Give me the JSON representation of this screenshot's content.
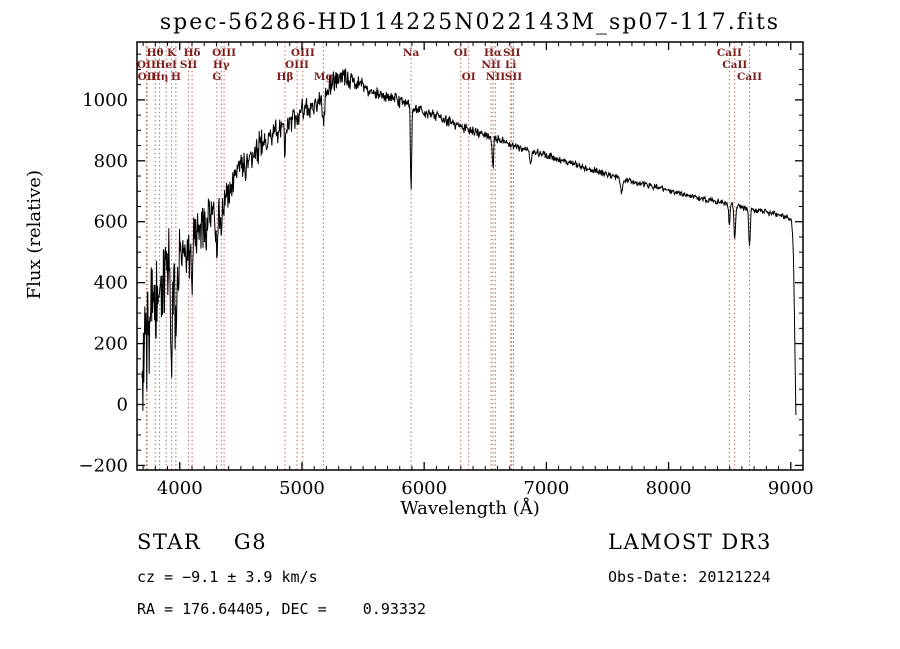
{
  "chart_data": {
    "type": "line",
    "title": "spec-56286-HD114225N022143M_sp07-117.fits",
    "xlabel": "Wavelength (Å)",
    "ylabel": "Flux (relative)",
    "xlim": [
      3650,
      9100
    ],
    "ylim": [
      -215,
      1190
    ],
    "xticks": [
      4000,
      5000,
      6000,
      7000,
      8000,
      9000
    ],
    "yticks": [
      -200,
      0,
      200,
      400,
      600,
      800,
      1000
    ],
    "x_minor_step": 100,
    "y_minor_step": 50,
    "grid": false,
    "legend": "none",
    "line_color": "#000000",
    "marker_style": {
      "color": "#b2503c",
      "label_color": "#7d1d1d",
      "dash": "1.5 2.6"
    },
    "sample_range": [
      3690,
      9042
    ],
    "sample_step": 4,
    "noise_seed": 20121224,
    "continuum": [
      [
        3690,
        130
      ],
      [
        3730,
        225
      ],
      [
        3770,
        290
      ],
      [
        3820,
        345
      ],
      [
        3870,
        390
      ],
      [
        3920,
        425
      ],
      [
        3970,
        455
      ],
      [
        4020,
        500
      ],
      [
        4070,
        520
      ],
      [
        4120,
        545
      ],
      [
        4180,
        570
      ],
      [
        4250,
        600
      ],
      [
        4320,
        645
      ],
      [
        4400,
        705
      ],
      [
        4480,
        762
      ],
      [
        4560,
        808
      ],
      [
        4650,
        848
      ],
      [
        4750,
        884
      ],
      [
        4850,
        917
      ],
      [
        4950,
        946
      ],
      [
        5050,
        971
      ],
      [
        5150,
        998
      ],
      [
        5250,
        1055
      ],
      [
        5320,
        1085
      ],
      [
        5390,
        1068
      ],
      [
        5460,
        1052
      ],
      [
        5560,
        1035
      ],
      [
        5660,
        1016
      ],
      [
        5760,
        1001
      ],
      [
        5860,
        986
      ],
      [
        5960,
        968
      ],
      [
        6060,
        952
      ],
      [
        6160,
        937
      ],
      [
        6260,
        921
      ],
      [
        6360,
        905
      ],
      [
        6460,
        890
      ],
      [
        6560,
        876
      ],
      [
        6660,
        861
      ],
      [
        6760,
        848
      ],
      [
        6860,
        835
      ],
      [
        6960,
        822
      ],
      [
        7060,
        809
      ],
      [
        7160,
        796
      ],
      [
        7260,
        783
      ],
      [
        7360,
        771
      ],
      [
        7460,
        759
      ],
      [
        7560,
        748
      ],
      [
        7660,
        738
      ],
      [
        7760,
        727
      ],
      [
        7860,
        717
      ],
      [
        7960,
        707
      ],
      [
        8060,
        697
      ],
      [
        8160,
        687
      ],
      [
        8260,
        678
      ],
      [
        8360,
        669
      ],
      [
        8460,
        660
      ],
      [
        8560,
        651
      ],
      [
        8660,
        642
      ],
      [
        8760,
        634
      ],
      [
        8860,
        626
      ],
      [
        8960,
        617
      ],
      [
        9005,
        606
      ],
      [
        9020,
        520
      ],
      [
        9032,
        250
      ],
      [
        9042,
        -40
      ]
    ],
    "noise_profile": [
      [
        3690,
        255
      ],
      [
        3740,
        235
      ],
      [
        3800,
        210
      ],
      [
        3860,
        190
      ],
      [
        3920,
        170
      ],
      [
        3980,
        148
      ],
      [
        4050,
        122
      ],
      [
        4150,
        100
      ],
      [
        4300,
        85
      ],
      [
        4500,
        65
      ],
      [
        4700,
        55
      ],
      [
        4900,
        48
      ],
      [
        5100,
        45
      ],
      [
        5300,
        42
      ],
      [
        5500,
        30
      ],
      [
        5700,
        26
      ],
      [
        5900,
        24
      ],
      [
        6100,
        22
      ],
      [
        6400,
        20
      ],
      [
        6700,
        17
      ],
      [
        7000,
        15
      ],
      [
        7400,
        14
      ],
      [
        7800,
        13
      ],
      [
        8200,
        12
      ],
      [
        8600,
        12
      ],
      [
        8900,
        11
      ],
      [
        9042,
        8
      ]
    ],
    "absorption_features": [
      {
        "name": "CaII K",
        "center": 3933,
        "sigma": 6,
        "depth": 280
      },
      {
        "name": "CaII H",
        "center": 3968,
        "sigma": 6,
        "depth": 240
      },
      {
        "name": "Hδ",
        "center": 4101,
        "sigma": 5,
        "depth": 110
      },
      {
        "name": "G band",
        "center": 4304,
        "sigma": 10,
        "depth": 100
      },
      {
        "name": "Hγ",
        "center": 4340,
        "sigma": 5,
        "depth": 90
      },
      {
        "name": "Hβ",
        "center": 4861,
        "sigma": 6,
        "depth": 110
      },
      {
        "name": "Mg",
        "center": 5175,
        "sigma": 9,
        "depth": 90
      },
      {
        "name": "Na",
        "center": 5893,
        "sigma": 5,
        "depth": 280
      },
      {
        "name": "Hα",
        "center": 6563,
        "sigma": 5,
        "depth": 100
      },
      {
        "name": "telluric B",
        "center": 6870,
        "sigma": 8,
        "depth": 45
      },
      {
        "name": "telluric A",
        "center": 7615,
        "sigma": 8,
        "depth": 50
      },
      {
        "name": "CaII 8498",
        "center": 8498,
        "sigma": 5,
        "depth": 70
      },
      {
        "name": "CaII 8542",
        "center": 8542,
        "sigma": 6,
        "depth": 110
      },
      {
        "name": "CaII 8662",
        "center": 8662,
        "sigma": 6,
        "depth": 120
      }
    ],
    "spectral_line_markers": [
      {
        "label": "Hθ",
        "wavelength": 3798,
        "row": 1
      },
      {
        "label": "K",
        "wavelength": 3933,
        "row": 1
      },
      {
        "label": "Hδ",
        "wavelength": 4101,
        "row": 1
      },
      {
        "label": "OII",
        "wavelength": 3727,
        "row": 2
      },
      {
        "label": "HeI",
        "wavelength": 3889,
        "row": 2
      },
      {
        "label": "SII",
        "wavelength": 4072,
        "row": 2
      },
      {
        "label": "OII",
        "wavelength": 3733,
        "row": 3
      },
      {
        "label": "Hη",
        "wavelength": 3835,
        "row": 3
      },
      {
        "label": "H",
        "wavelength": 3968,
        "row": 3
      },
      {
        "label": "OIII",
        "wavelength": 4363,
        "row": 1
      },
      {
        "label": "Hγ",
        "wavelength": 4340,
        "row": 2
      },
      {
        "label": "G",
        "wavelength": 4304,
        "row": 3
      },
      {
        "label": "OIII",
        "wavelength": 5007,
        "row": 1
      },
      {
        "label": "OIII",
        "wavelength": 4959,
        "row": 2
      },
      {
        "label": "Hβ",
        "wavelength": 4861,
        "row": 3
      },
      {
        "label": "Mg",
        "wavelength": 5175,
        "row": 3
      },
      {
        "label": "Na",
        "wavelength": 5893,
        "row": 1
      },
      {
        "label": "OI",
        "wavelength": 6300,
        "row": 1
      },
      {
        "label": "OI",
        "wavelength": 6364,
        "row": 3
      },
      {
        "label": "Hα",
        "wavelength": 6563,
        "row": 1
      },
      {
        "label": "SII",
        "wavelength": 6716,
        "row": 1
      },
      {
        "label": "NII",
        "wavelength": 6548,
        "row": 2
      },
      {
        "label": "Li",
        "wavelength": 6708,
        "row": 2
      },
      {
        "label": "NII",
        "wavelength": 6583,
        "row": 3
      },
      {
        "label": "SII",
        "wavelength": 6731,
        "row": 3
      },
      {
        "label": "CaII",
        "wavelength": 8498,
        "row": 1
      },
      {
        "label": "CaII",
        "wavelength": 8542,
        "row": 2
      },
      {
        "label": "CaII",
        "wavelength": 8662,
        "row": 3
      }
    ]
  },
  "annotations": {
    "class_line": "STAR    G8",
    "cz_line": "cz = −9.1 ± 3.9 km/s",
    "radec_line": "RA = 176.64405, DEC =    0.93332",
    "survey": "LAMOST DR3",
    "obs_date": "Obs-Date: 20121224"
  }
}
